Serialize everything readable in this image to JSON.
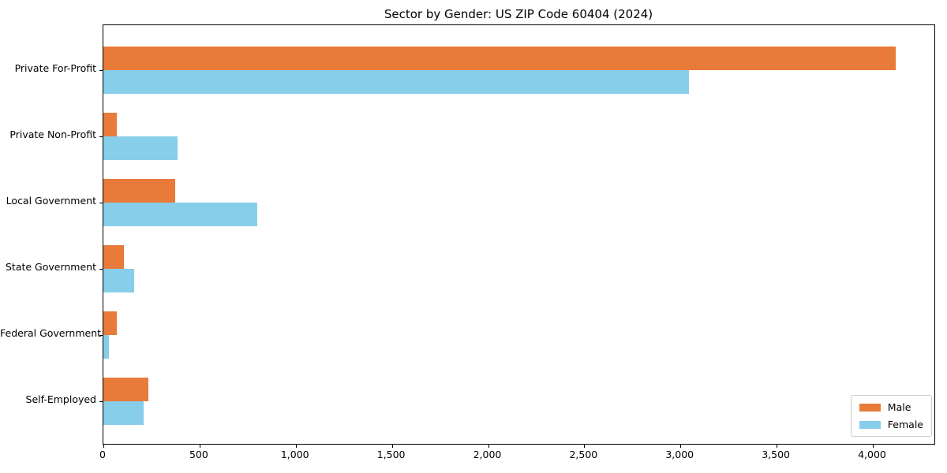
{
  "chart_data": {
    "type": "bar",
    "orientation": "horizontal",
    "title": "Sector by Gender: US ZIP Code 60404 (2024)",
    "categories": [
      "Private For-Profit",
      "Private Non-Profit",
      "Local Government",
      "State Government",
      "Federal Government",
      "Self-Employed"
    ],
    "series": [
      {
        "name": "Male",
        "color": "#e87a3a",
        "values": [
          4120,
          70,
          375,
          105,
          70,
          235
        ]
      },
      {
        "name": "Female",
        "color": "#87ceeb",
        "values": [
          3045,
          385,
          800,
          160,
          30,
          210
        ]
      }
    ],
    "xlim": [
      0,
      4320
    ],
    "x_ticks": [
      0,
      500,
      1000,
      1500,
      2000,
      2500,
      3000,
      3500,
      4000
    ],
    "x_tick_labels": [
      "0",
      "500",
      "1,000",
      "1,500",
      "2,000",
      "2,500",
      "3,000",
      "3,500",
      "4,000"
    ],
    "xlabel": "",
    "ylabel": "",
    "grid": false,
    "legend_position": "lower right",
    "colors": {
      "axis": "#000000",
      "legend_border": "#cccccc",
      "background": "#ffffff"
    }
  }
}
